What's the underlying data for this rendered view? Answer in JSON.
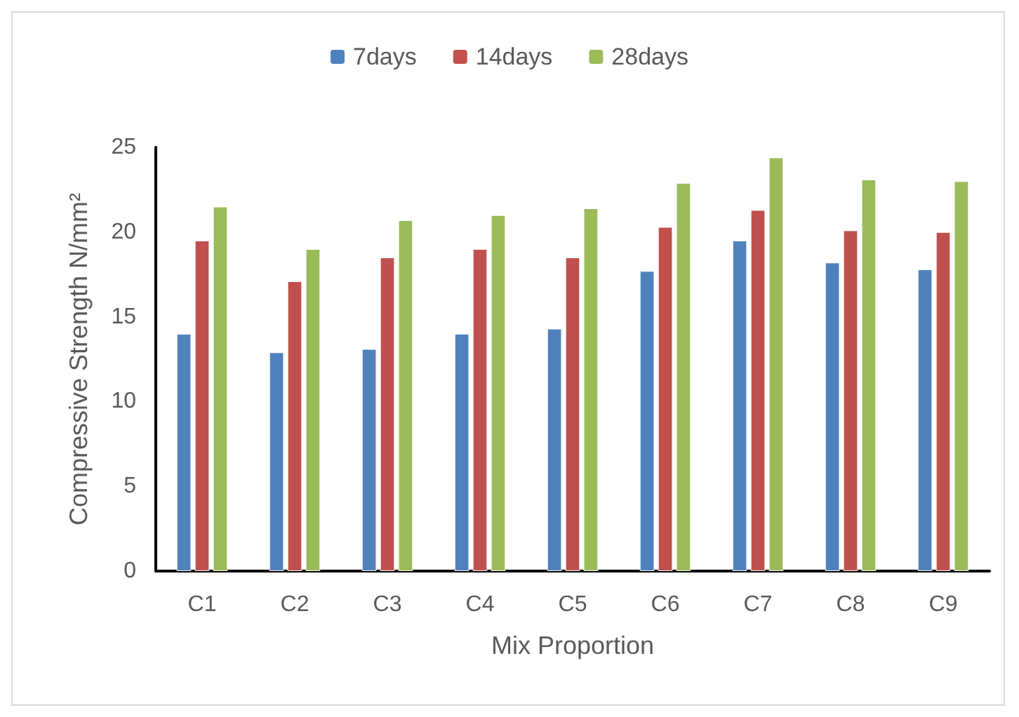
{
  "chart_data": {
    "type": "bar",
    "xlabel": "Mix Proportion",
    "ylabel": "Compressive Strength N/mm²",
    "categories": [
      "C1",
      "C2",
      "C3",
      "C4",
      "C5",
      "C6",
      "C7",
      "C8",
      "C9"
    ],
    "series": [
      {
        "name": "7days",
        "color": "#4f81bd",
        "values": [
          14.0,
          12.9,
          13.1,
          14.0,
          14.3,
          17.7,
          19.5,
          18.2,
          17.8
        ]
      },
      {
        "name": "14days",
        "color": "#c0504d",
        "values": [
          19.5,
          17.1,
          18.5,
          19.0,
          18.5,
          20.3,
          21.3,
          20.1,
          20.0
        ]
      },
      {
        "name": "28days",
        "color": "#9bbb59",
        "values": [
          21.5,
          19.0,
          20.7,
          21.0,
          21.4,
          22.9,
          24.4,
          23.1,
          23.0
        ]
      }
    ],
    "ylim": [
      0,
      25
    ],
    "yticks": [
      0,
      5,
      10,
      15,
      20,
      25
    ],
    "grid": false,
    "legend": "top"
  }
}
